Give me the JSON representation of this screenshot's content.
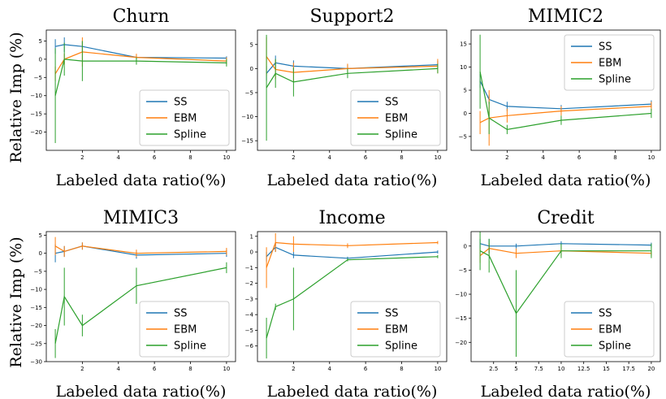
{
  "figure": {
    "ylabel_top": "Relative Imp (%)",
    "ylabel_bottom": "Relative Imp (%)"
  },
  "colors": {
    "SS": "#1f77b4",
    "EBM": "#ff7f0e",
    "Spline": "#2ca02c"
  },
  "chart_data": [
    {
      "type": "line",
      "title": "Churn",
      "xlabel": "Labeled data ratio(%)",
      "ylabel": "",
      "xlim": [
        0,
        10.5
      ],
      "ylim": [
        -25,
        8
      ],
      "xticks": [
        2,
        4,
        6,
        8,
        10
      ],
      "yticks": [
        5,
        0,
        -5,
        -10,
        -15,
        -20
      ],
      "legend": "lower-right",
      "series": [
        {
          "name": "SS",
          "x": [
            0.5,
            1,
            2,
            5,
            10
          ],
          "y": [
            3.5,
            4.0,
            3.5,
            0.5,
            0.3
          ],
          "err": [
            2.0,
            2.0,
            1.5,
            0.5,
            0.5
          ]
        },
        {
          "name": "EBM",
          "x": [
            0.5,
            1,
            2,
            5,
            10
          ],
          "y": [
            -4.0,
            0.0,
            2.0,
            0.5,
            -0.5
          ],
          "err": [
            2.0,
            1.5,
            4.0,
            1.0,
            1.0
          ]
        },
        {
          "name": "Spline",
          "x": [
            0.5,
            1,
            2,
            5,
            10
          ],
          "y": [
            -10.0,
            0.0,
            -0.5,
            -0.5,
            -1.0
          ],
          "err": [
            13.0,
            4.5,
            5.5,
            1.0,
            1.0
          ]
        }
      ]
    },
    {
      "type": "line",
      "title": "Support2",
      "xlabel": "Labeled data ratio(%)",
      "ylabel": "",
      "xlim": [
        0,
        10.5
      ],
      "ylim": [
        -17,
        8
      ],
      "xticks": [
        2,
        4,
        6,
        8,
        10
      ],
      "yticks": [
        5,
        0,
        -5,
        -10,
        -15
      ],
      "legend": "lower-right",
      "series": [
        {
          "name": "SS",
          "x": [
            0.5,
            1,
            2,
            5,
            10
          ],
          "y": [
            -1.0,
            1.2,
            0.5,
            0.0,
            0.8
          ],
          "err": [
            1.5,
            1.5,
            1.2,
            0.8,
            0.8
          ]
        },
        {
          "name": "EBM",
          "x": [
            0.5,
            1,
            2,
            5,
            10
          ],
          "y": [
            2.5,
            -0.2,
            -0.8,
            0.0,
            0.5
          ],
          "err": [
            4.0,
            2.0,
            2.0,
            1.0,
            1.5
          ]
        },
        {
          "name": "Spline",
          "x": [
            0.5,
            1,
            2,
            5,
            10
          ],
          "y": [
            -4.0,
            -1.0,
            -2.8,
            -1.0,
            0.0
          ],
          "err": [
            11.0,
            3.0,
            3.0,
            1.0,
            1.0
          ]
        }
      ]
    },
    {
      "type": "line",
      "title": "MIMIC2",
      "xlabel": "Labeled data ratio(%)",
      "ylabel": "",
      "xlim": [
        0,
        10.5
      ],
      "ylim": [
        -8,
        18
      ],
      "xticks": [
        2,
        4,
        6,
        8,
        10
      ],
      "yticks": [
        15,
        10,
        5,
        0,
        -5
      ],
      "legend": "upper-right",
      "series": [
        {
          "name": "SS",
          "x": [
            0.5,
            1,
            2,
            5,
            10
          ],
          "y": [
            7.0,
            3.0,
            1.5,
            1.0,
            2.0
          ],
          "err": [
            1.5,
            1.0,
            1.0,
            0.8,
            0.8
          ]
        },
        {
          "name": "EBM",
          "x": [
            0.5,
            1,
            2,
            5,
            10
          ],
          "y": [
            -2.0,
            -1.0,
            -0.5,
            0.5,
            1.5
          ],
          "err": [
            2.5,
            6.0,
            1.5,
            1.0,
            1.0
          ]
        },
        {
          "name": "Spline",
          "x": [
            0.5,
            1,
            2,
            5,
            10
          ],
          "y": [
            9.0,
            -1.0,
            -3.5,
            -1.5,
            0.0
          ],
          "err": [
            8.0,
            3.5,
            1.0,
            1.0,
            1.0
          ]
        }
      ]
    },
    {
      "type": "line",
      "title": "MIMIC3",
      "xlabel": "Labeled data ratio(%)",
      "ylabel": "",
      "xlim": [
        0,
        10.5
      ],
      "ylim": [
        -30,
        6
      ],
      "xticks": [
        2,
        4,
        6,
        8,
        10
      ],
      "yticks": [
        5,
        0,
        -5,
        -10,
        -15,
        -20,
        -25,
        -30
      ],
      "legend": "lower-right",
      "series": [
        {
          "name": "SS",
          "x": [
            0.5,
            1,
            2,
            5,
            10
          ],
          "y": [
            0.0,
            0.5,
            2.0,
            -0.5,
            0.0
          ],
          "err": [
            2.5,
            1.5,
            1.0,
            1.0,
            1.0
          ]
        },
        {
          "name": "EBM",
          "x": [
            0.5,
            1,
            2,
            5,
            10
          ],
          "y": [
            2.0,
            0.5,
            2.0,
            0.0,
            0.5
          ],
          "err": [
            2.5,
            1.5,
            1.0,
            1.0,
            1.0
          ]
        },
        {
          "name": "Spline",
          "x": [
            0.5,
            1,
            2,
            5,
            10
          ],
          "y": [
            -25.0,
            -12.0,
            -20.0,
            -9.0,
            -4.0
          ],
          "err": [
            4.0,
            8.0,
            3.0,
            5.0,
            1.5
          ]
        }
      ]
    },
    {
      "type": "line",
      "title": "Income",
      "xlabel": "Labeled data ratio(%)",
      "ylabel": "",
      "xlim": [
        0,
        10.5
      ],
      "ylim": [
        -7,
        1.3
      ],
      "xticks": [
        2,
        4,
        6,
        8,
        10
      ],
      "yticks": [
        1,
        0,
        -1,
        -2,
        -3,
        -4,
        -5,
        -6
      ],
      "legend": "lower-right",
      "series": [
        {
          "name": "SS",
          "x": [
            0.5,
            1,
            2,
            5,
            10
          ],
          "y": [
            -0.3,
            0.3,
            -0.2,
            -0.4,
            0.0
          ],
          "err": [
            0.3,
            0.3,
            0.2,
            0.1,
            0.1
          ]
        },
        {
          "name": "EBM",
          "x": [
            0.5,
            1,
            2,
            5,
            10
          ],
          "y": [
            -1.0,
            0.6,
            0.5,
            0.4,
            0.6
          ],
          "err": [
            1.3,
            0.6,
            0.5,
            0.15,
            0.1
          ]
        },
        {
          "name": "Spline",
          "x": [
            0.5,
            1,
            2,
            5,
            10
          ],
          "y": [
            -5.5,
            -3.5,
            -3.0,
            -0.5,
            -0.3
          ],
          "err": [
            1.3,
            0.2,
            2.0,
            0.1,
            0.1
          ]
        }
      ]
    },
    {
      "type": "line",
      "title": "Credit",
      "xlabel": "Labeled data ratio(%)",
      "ylabel": "",
      "xlim": [
        0,
        21
      ],
      "ylim": [
        -24,
        3
      ],
      "xticks": [
        2.5,
        5.0,
        7.5,
        10.0,
        12.5,
        15.0,
        17.5,
        20.0
      ],
      "yticks": [
        0,
        -5,
        -10,
        -15,
        -20
      ],
      "legend": "lower-right",
      "series": [
        {
          "name": "SS",
          "x": [
            1,
            2,
            5,
            10,
            20
          ],
          "y": [
            0.5,
            0.0,
            0.0,
            0.5,
            0.2
          ],
          "err": [
            1.0,
            1.5,
            0.5,
            0.5,
            0.5
          ]
        },
        {
          "name": "EBM",
          "x": [
            1,
            2,
            5,
            10,
            20
          ],
          "y": [
            -2.0,
            -0.5,
            -1.5,
            -1.0,
            -1.5
          ],
          "err": [
            1.5,
            1.0,
            1.0,
            1.0,
            0.5
          ]
        },
        {
          "name": "Spline",
          "x": [
            1,
            2,
            5,
            10,
            20
          ],
          "y": [
            -1.0,
            -2.0,
            -14.0,
            -1.0,
            -1.0
          ],
          "err": [
            4.0,
            3.5,
            9.0,
            1.5,
            1.5
          ]
        }
      ]
    }
  ]
}
